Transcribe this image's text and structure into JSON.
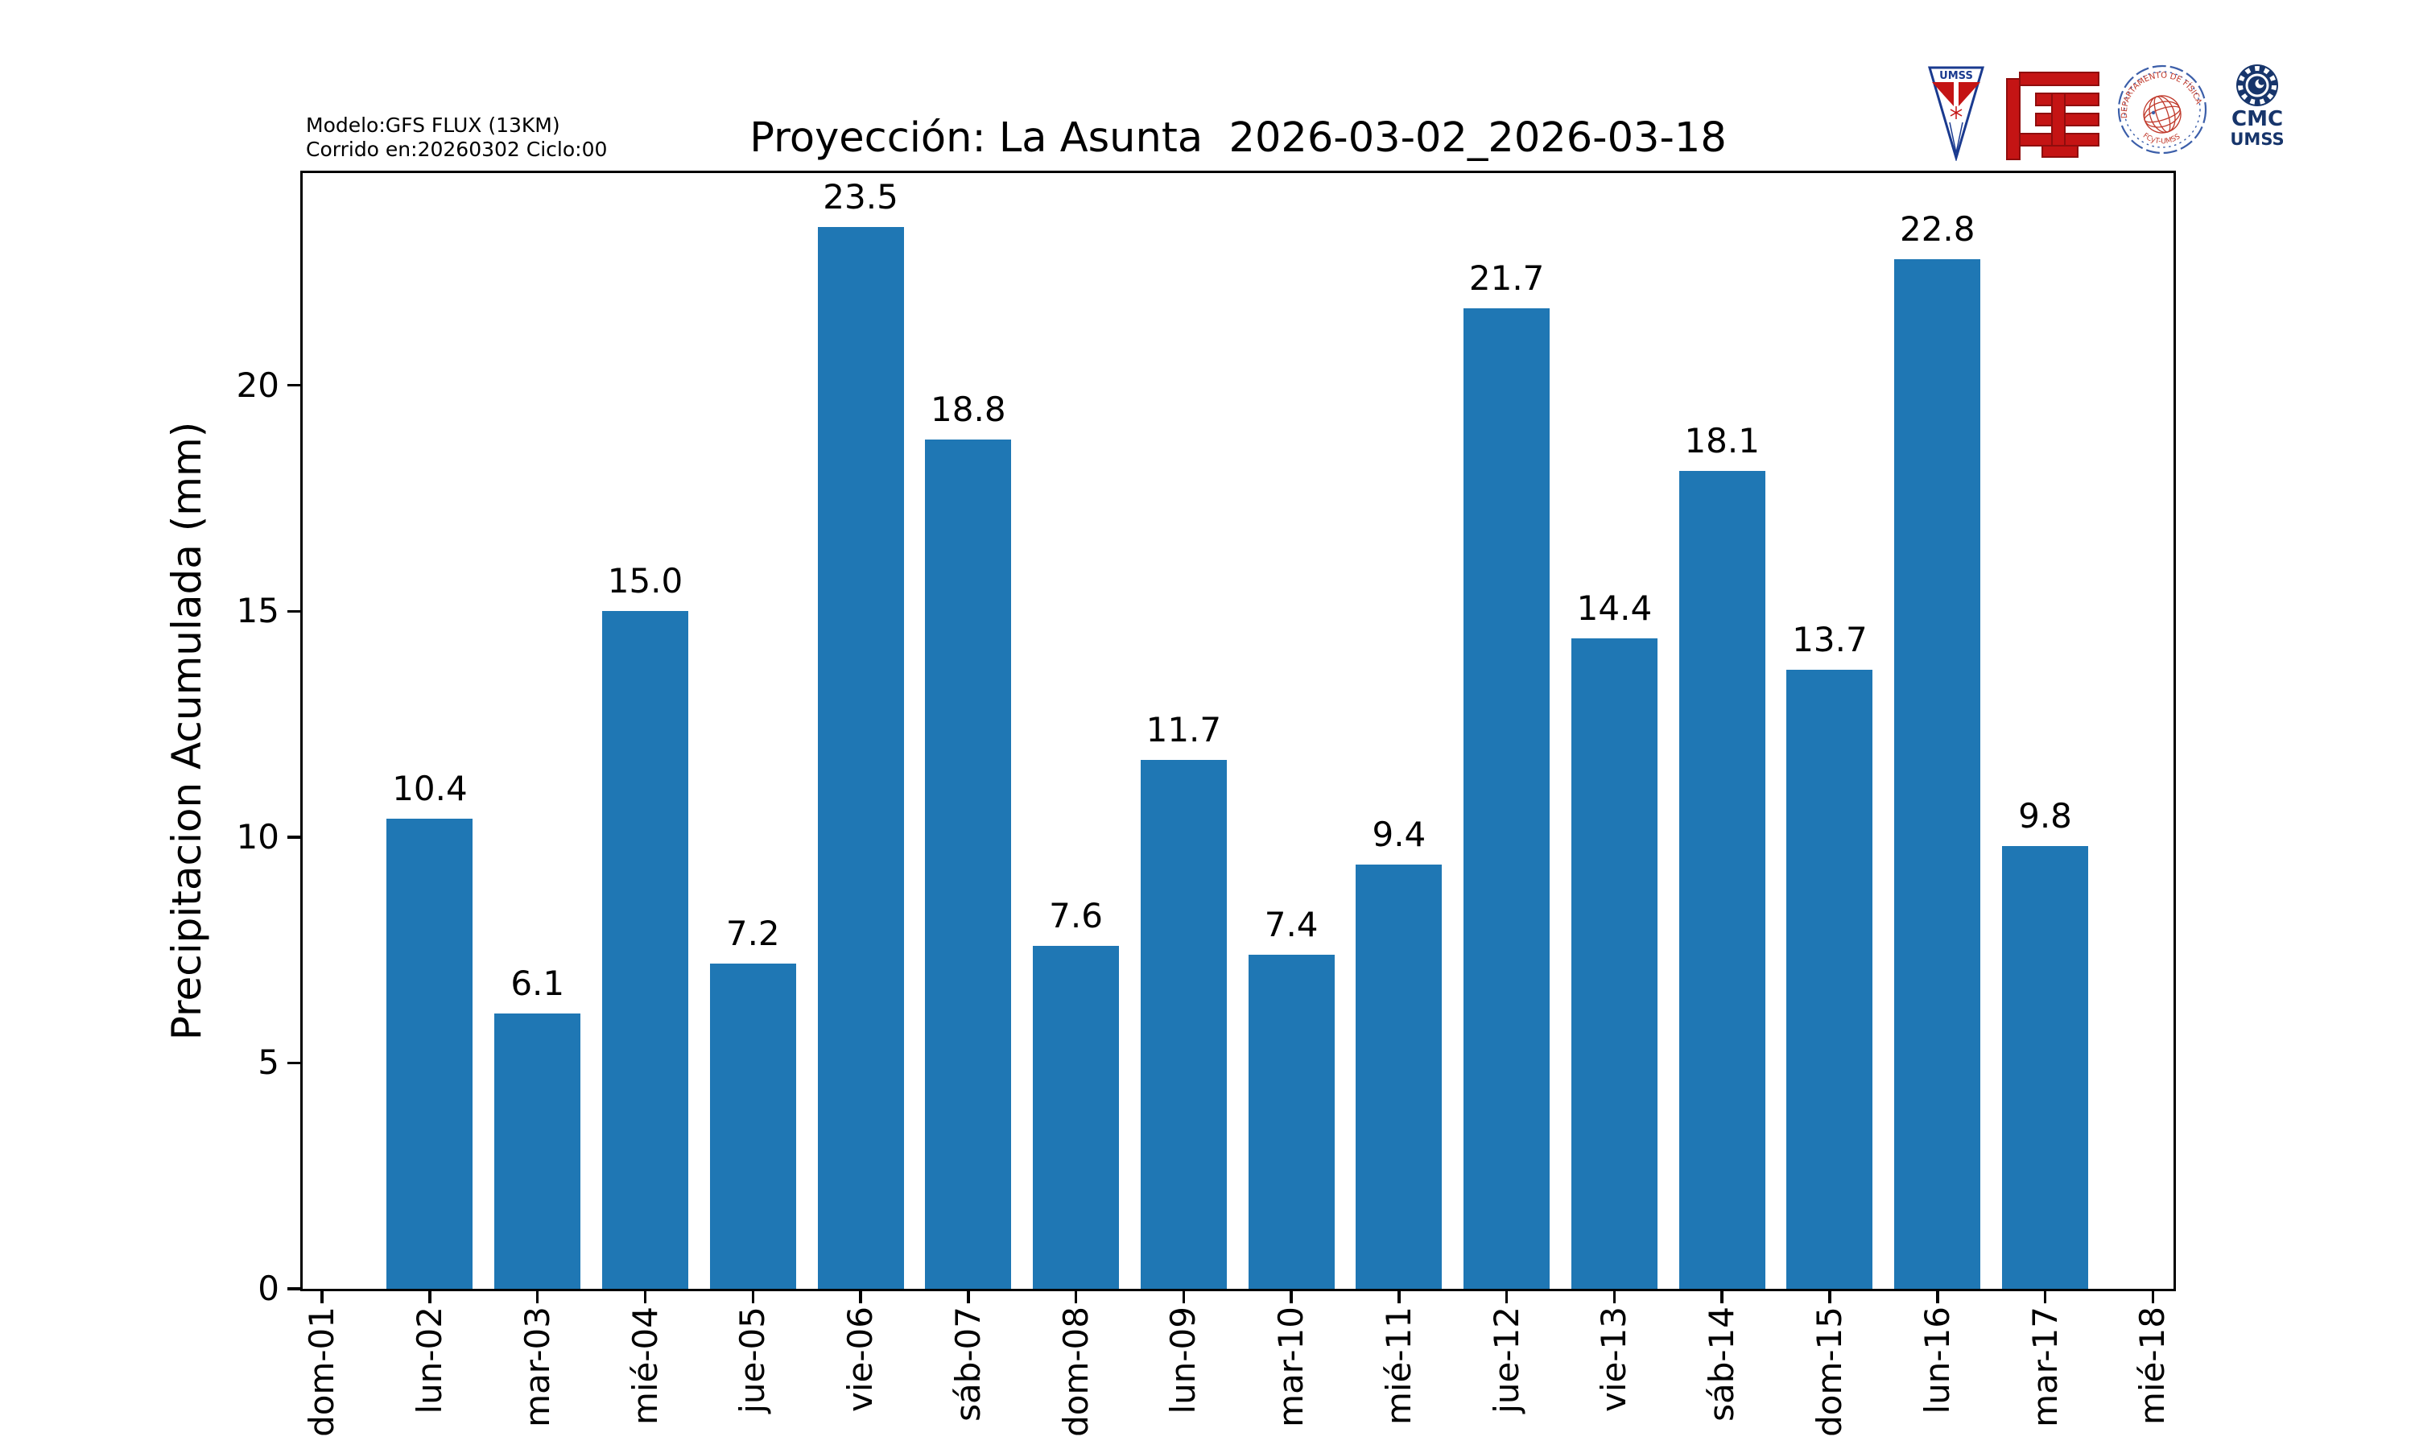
{
  "header": {
    "model_line1": "Modelo:GFS FLUX (13KM)",
    "model_line2": "Corrido en:20260302 Ciclo:00",
    "title": "Proyección: La Asunta  2026-03-02_2026-03-18"
  },
  "logos": {
    "umss_pennant_label": "UMSS",
    "fisica_seal_top": "DEPARTAMENTO DE FÍSICA",
    "fisica_seal_bottom": "FCyT-UMSS",
    "cmc_line1": "CMC",
    "cmc_line2": "UMSS"
  },
  "colors": {
    "bar": "#1f77b4",
    "logo_red": "#c41414",
    "logo_red_dark": "#8f0d0d",
    "logo_navy": "#17356b",
    "seal_blue": "#3b5ea9",
    "seal_red": "#c0392b",
    "pennant_blue": "#1a3a8f"
  },
  "chart_data": {
    "type": "bar",
    "title": "Proyección: La Asunta  2026-03-02_2026-03-18",
    "xlabel": "",
    "ylabel": "Precipitacion Acumulada (mm)",
    "categories": [
      "dom-01",
      "lun-02",
      "mar-03",
      "mié-04",
      "jue-05",
      "vie-06",
      "sáb-07",
      "dom-08",
      "lun-09",
      "mar-10",
      "mié-11",
      "jue-12",
      "vie-13",
      "sáb-14",
      "dom-15",
      "lun-16",
      "mar-17",
      "mié-18"
    ],
    "values": [
      null,
      10.4,
      6.1,
      15.0,
      7.2,
      23.5,
      18.8,
      7.6,
      11.7,
      7.4,
      9.4,
      21.7,
      14.4,
      18.1,
      13.7,
      22.8,
      9.8,
      null
    ],
    "bar_labels": [
      "",
      "10.4",
      "6.1",
      "15.0",
      "7.2",
      "23.5",
      "18.8",
      "7.6",
      "11.7",
      "7.4",
      "9.4",
      "21.7",
      "14.4",
      "18.1",
      "13.7",
      "22.8",
      "9.8",
      ""
    ],
    "yticks": [
      0,
      5,
      10,
      15,
      20
    ],
    "ylim": [
      0,
      24.7
    ],
    "bar_color": "#1f77b4",
    "grid": false,
    "legend": null
  }
}
